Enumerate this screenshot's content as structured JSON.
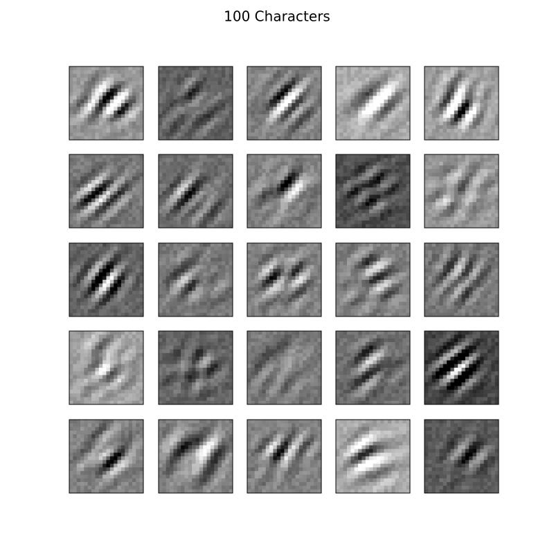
{
  "title": "100 Characters"
}
